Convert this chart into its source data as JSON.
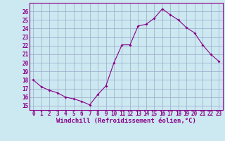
{
  "x": [
    0,
    1,
    2,
    3,
    4,
    5,
    6,
    7,
    8,
    9,
    10,
    11,
    12,
    13,
    14,
    15,
    16,
    17,
    18,
    19,
    20,
    21,
    22,
    23
  ],
  "y": [
    18,
    17.2,
    16.8,
    16.5,
    16.0,
    15.8,
    15.5,
    15.1,
    16.3,
    17.3,
    20.0,
    22.1,
    22.1,
    24.3,
    24.5,
    25.2,
    26.3,
    25.6,
    25.0,
    24.1,
    23.5,
    22.1,
    21.0,
    20.2
  ],
  "xlim": [
    -0.5,
    23.5
  ],
  "ylim": [
    14.5,
    27.0
  ],
  "yticks": [
    15,
    16,
    17,
    18,
    19,
    20,
    21,
    22,
    23,
    24,
    25,
    26
  ],
  "xticks": [
    0,
    1,
    2,
    3,
    4,
    5,
    6,
    7,
    8,
    9,
    10,
    11,
    12,
    13,
    14,
    15,
    16,
    17,
    18,
    19,
    20,
    21,
    22,
    23
  ],
  "xlabel": "Windchill (Refroidissement éolien,°C)",
  "line_color": "#880088",
  "marker": "D",
  "marker_size": 2.0,
  "bg_color": "#cce8f0",
  "grid_color": "#99aacc",
  "tick_label_color": "#880088",
  "axis_label_color": "#880088",
  "tick_fontsize": 5.5,
  "label_fontsize": 6.5,
  "linewidth": 0.8
}
